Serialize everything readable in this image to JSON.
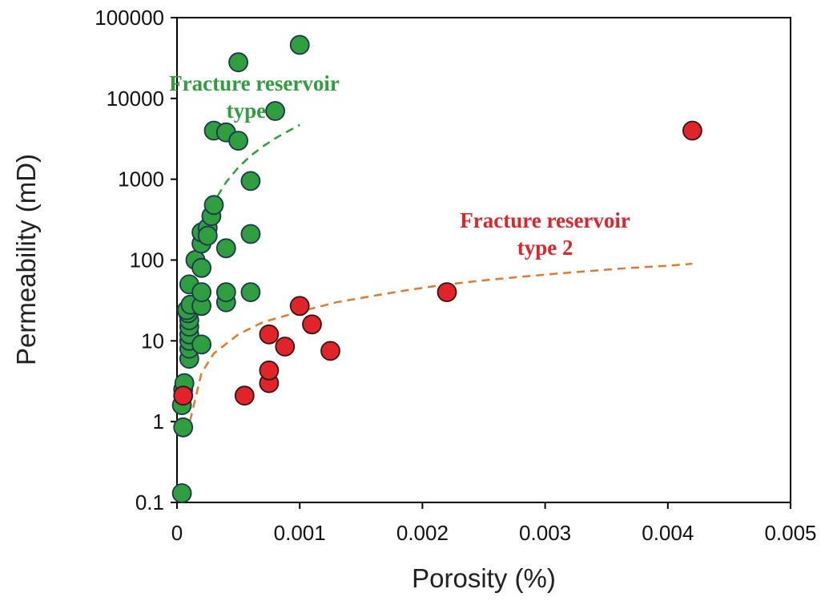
{
  "chart_data": {
    "type": "scatter",
    "xlabel": "Porosity (%)",
    "ylabel": "Permeability (mD)",
    "xlim": [
      0,
      0.005
    ],
    "ylim": [
      0.1,
      100000
    ],
    "yscale": "log",
    "grid": false,
    "legend": "none",
    "x_ticks": [
      "0",
      "0.001",
      "0.002",
      "0.003",
      "0.004",
      "0.005"
    ],
    "y_ticks": [
      "0.1",
      "1",
      "10",
      "100",
      "1000",
      "10000",
      "100000"
    ],
    "series": [
      {
        "color": "#2e9e3e",
        "edge_color": "#1e3550",
        "points": [
          [
            4e-05,
            0.13
          ],
          [
            5e-05,
            0.85
          ],
          [
            4e-05,
            1.6
          ],
          [
            5e-05,
            2.5
          ],
          [
            6e-05,
            3.0
          ],
          [
            0.0001,
            6.0
          ],
          [
            0.0001,
            8.0
          ],
          [
            0.0001,
            10
          ],
          [
            0.0001,
            12
          ],
          [
            0.0001,
            15
          ],
          [
            0.0001,
            18
          ],
          [
            9e-05,
            22
          ],
          [
            8e-05,
            24
          ],
          [
            0.00011,
            28
          ],
          [
            0.0001,
            50
          ],
          [
            0.00015,
            100
          ],
          [
            0.0002,
            9.0
          ],
          [
            0.0002,
            27
          ],
          [
            0.0002,
            40
          ],
          [
            0.0002,
            80
          ],
          [
            0.0002,
            160
          ],
          [
            0.0002,
            220
          ],
          [
            0.00025,
            250
          ],
          [
            0.00025,
            200
          ],
          [
            0.00028,
            350
          ],
          [
            0.0003,
            480
          ],
          [
            0.0004,
            30
          ],
          [
            0.0004,
            40
          ],
          [
            0.0004,
            140
          ],
          [
            0.0006,
            40
          ],
          [
            0.0006,
            210
          ],
          [
            0.0006,
            950
          ],
          [
            0.0003,
            4000
          ],
          [
            0.0004,
            3800
          ],
          [
            0.0005,
            3000
          ],
          [
            0.0008,
            7000
          ],
          [
            0.0005,
            28000
          ],
          [
            0.001,
            46000
          ]
        ]
      },
      {
        "color": "#e0242a",
        "edge_color": "#3a1414",
        "points": [
          [
            5e-05,
            2.1
          ],
          [
            0.00055,
            2.1
          ],
          [
            0.00075,
            3.0
          ],
          [
            0.00075,
            4.3
          ],
          [
            0.00075,
            12
          ],
          [
            0.00088,
            8.5
          ],
          [
            0.001,
            27
          ],
          [
            0.0011,
            16
          ],
          [
            0.00125,
            7.5
          ],
          [
            0.0022,
            40
          ],
          [
            0.0042,
            4000
          ]
        ]
      }
    ],
    "trendlines": [
      {
        "color": "#2e9e3e",
        "style": "dashed",
        "points": [
          [
            0.00014,
            100
          ],
          [
            0.0002,
            220
          ],
          [
            0.0003,
            520
          ],
          [
            0.0004,
            920
          ],
          [
            0.0005,
            1400
          ],
          [
            0.0006,
            1950
          ],
          [
            0.0007,
            2550
          ],
          [
            0.0008,
            3200
          ],
          [
            0.0009,
            3900
          ],
          [
            0.001,
            4700
          ]
        ]
      },
      {
        "color": "#e27a2a",
        "style": "dashed",
        "points": [
          [
            8e-05,
            0.7
          ],
          [
            0.0002,
            4.0
          ],
          [
            0.0003,
            7.0
          ],
          [
            0.0005,
            12
          ],
          [
            0.0007,
            17
          ],
          [
            0.001,
            23
          ],
          [
            0.0013,
            30
          ],
          [
            0.0016,
            36
          ],
          [
            0.0019,
            43
          ],
          [
            0.0022,
            50
          ],
          [
            0.0025,
            56
          ],
          [
            0.0028,
            62
          ],
          [
            0.0031,
            68
          ],
          [
            0.0034,
            74
          ],
          [
            0.0037,
            80
          ],
          [
            0.004,
            85
          ],
          [
            0.0042,
            90
          ]
        ]
      }
    ],
    "annotations": [
      {
        "lines": [
          "Fracture reservoir",
          "type 1"
        ],
        "color": "#2e9e3e",
        "x": 0.00063,
        "y": 10000
      },
      {
        "lines": [
          "Fracture reservoir",
          "type 2"
        ],
        "color": "#e0242a",
        "x": 0.003,
        "y": 200
      }
    ]
  }
}
